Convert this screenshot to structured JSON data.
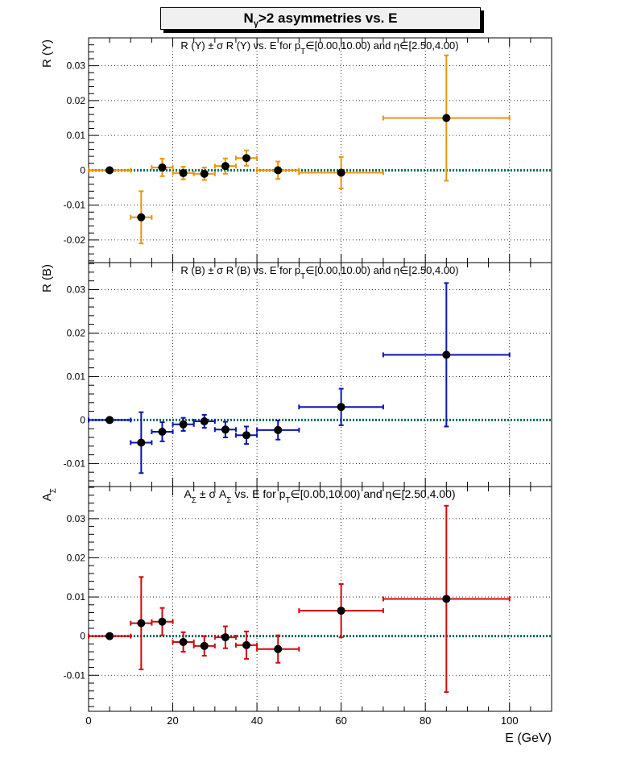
{
  "title": {
    "main": "N",
    "sub": "γ",
    "rest": ">2 asymmetries vs. E"
  },
  "xlabel": "E (GeV)",
  "chart_data": [
    {
      "type": "scatter",
      "panel_title": "R (Y) ± σ R (Y) vs. E for pT∈[0.00,10.00) and η∈[2.50,4.00)",
      "title_parts": {
        "a": "R (Y) ± σ R (Y) vs. E for p",
        "sub": "T",
        "b": "∈[0.00,10.00) and η∈[2.50,4.00)"
      },
      "ylabel": "R (Y)",
      "color": "#e8960a",
      "xlim": [
        0,
        110
      ],
      "ylim": [
        -0.0265,
        0.038
      ],
      "yticks": [
        -0.02,
        -0.01,
        0,
        0.01,
        0.02,
        0.03
      ],
      "ytick_labels": [
        "-0.02",
        "-0.01",
        "0",
        "0.01",
        "0.02",
        "0.03"
      ],
      "points": [
        {
          "x": 5,
          "y": 0,
          "xerr": 5,
          "yerr": 0
        },
        {
          "x": 12.5,
          "y": -0.0135,
          "xerr": 2.5,
          "yerr": 0.0075
        },
        {
          "x": 17.5,
          "y": 0.0008,
          "xerr": 2.5,
          "yerr": 0.0025
        },
        {
          "x": 22.5,
          "y": -0.0008,
          "xerr": 2.5,
          "yerr": 0.0018
        },
        {
          "x": 27.5,
          "y": -0.001,
          "xerr": 2.5,
          "yerr": 0.0018
        },
        {
          "x": 32.5,
          "y": 0.0012,
          "xerr": 2.5,
          "yerr": 0.0022
        },
        {
          "x": 37.5,
          "y": 0.0035,
          "xerr": 2.5,
          "yerr": 0.0022
        },
        {
          "x": 45,
          "y": 0,
          "xerr": 5,
          "yerr": 0.0025
        },
        {
          "x": 60,
          "y": -0.0007,
          "xerr": 10,
          "yerr": 0.0045
        },
        {
          "x": 85,
          "y": 0.015,
          "xerr": 15,
          "yerr": 0.018
        }
      ]
    },
    {
      "type": "scatter",
      "panel_title": "R (B) ± σ R (B) vs. E for pT∈[0.00,10.00) and η∈[2.50,4.00)",
      "title_parts": {
        "a": "R (B) ± σ R (B) vs. E for p",
        "sub": "T",
        "b": "∈[0.00,10.00) and η∈[2.50,4.00)"
      },
      "ylabel": "R (B)",
      "color": "#0a14b4",
      "xlim": [
        0,
        110
      ],
      "ylim": [
        -0.0153,
        0.0362
      ],
      "yticks": [
        -0.01,
        0,
        0.01,
        0.02,
        0.03
      ],
      "ytick_labels": [
        "-0.01",
        "0",
        "0.01",
        "0.02",
        "0.03"
      ],
      "points": [
        {
          "x": 5,
          "y": 0,
          "xerr": 5,
          "yerr": 0
        },
        {
          "x": 12.5,
          "y": -0.0052,
          "xerr": 2.5,
          "yerr": 0.007
        },
        {
          "x": 17.5,
          "y": -0.0027,
          "xerr": 2.5,
          "yerr": 0.0022
        },
        {
          "x": 22.5,
          "y": -0.001,
          "xerr": 2.5,
          "yerr": 0.0015
        },
        {
          "x": 27.5,
          "y": -0.0003,
          "xerr": 2.5,
          "yerr": 0.0015
        },
        {
          "x": 32.5,
          "y": -0.0022,
          "xerr": 2.5,
          "yerr": 0.0018
        },
        {
          "x": 37.5,
          "y": -0.0035,
          "xerr": 2.5,
          "yerr": 0.002
        },
        {
          "x": 45,
          "y": -0.0023,
          "xerr": 5,
          "yerr": 0.0022
        },
        {
          "x": 60,
          "y": 0.003,
          "xerr": 10,
          "yerr": 0.0042
        },
        {
          "x": 85,
          "y": 0.015,
          "xerr": 15,
          "yerr": 0.0165
        }
      ]
    },
    {
      "type": "scatter",
      "panel_title": "AΣ ± σ AΣ vs. E for pT∈[0.00,10.00) and η∈[2.50,4.00)",
      "title_parts": {
        "a0": "A",
        "sub0": "Σ",
        "a1": " ± σ A",
        "sub1": "Σ",
        "a": " vs. E for p",
        "sub": "T",
        "b": "∈[0.00,10.00) and η∈[2.50,4.00)"
      },
      "ylabel": "A",
      "ylabel_sub": "Σ",
      "color": "#d20a0a",
      "xlim": [
        0,
        110
      ],
      "ylim": [
        -0.0192,
        0.0382
      ],
      "yticks": [
        -0.01,
        0,
        0.01,
        0.02,
        0.03
      ],
      "ytick_labels": [
        "-0.01",
        "0",
        "0.01",
        "0.02",
        "0.03"
      ],
      "xticks": [
        0,
        20,
        40,
        60,
        80,
        100
      ],
      "xtick_labels": [
        "0",
        "20",
        "40",
        "60",
        "80",
        "100"
      ],
      "points": [
        {
          "x": 5,
          "y": 0,
          "xerr": 5,
          "yerr": 0
        },
        {
          "x": 12.5,
          "y": 0.0033,
          "xerr": 2.5,
          "yerr": 0.0118
        },
        {
          "x": 17.5,
          "y": 0.0037,
          "xerr": 2.5,
          "yerr": 0.0035
        },
        {
          "x": 22.5,
          "y": -0.0015,
          "xerr": 2.5,
          "yerr": 0.0025
        },
        {
          "x": 27.5,
          "y": -0.0025,
          "xerr": 2.5,
          "yerr": 0.0025
        },
        {
          "x": 32.5,
          "y": -0.0003,
          "xerr": 2.5,
          "yerr": 0.0028
        },
        {
          "x": 37.5,
          "y": -0.0023,
          "xerr": 2.5,
          "yerr": 0.0035
        },
        {
          "x": 45,
          "y": -0.0033,
          "xerr": 5,
          "yerr": 0.0035
        },
        {
          "x": 60,
          "y": 0.0065,
          "xerr": 10,
          "yerr": 0.0068
        },
        {
          "x": 85,
          "y": 0.0095,
          "xerr": 15,
          "yerr": 0.0238
        }
      ]
    }
  ]
}
